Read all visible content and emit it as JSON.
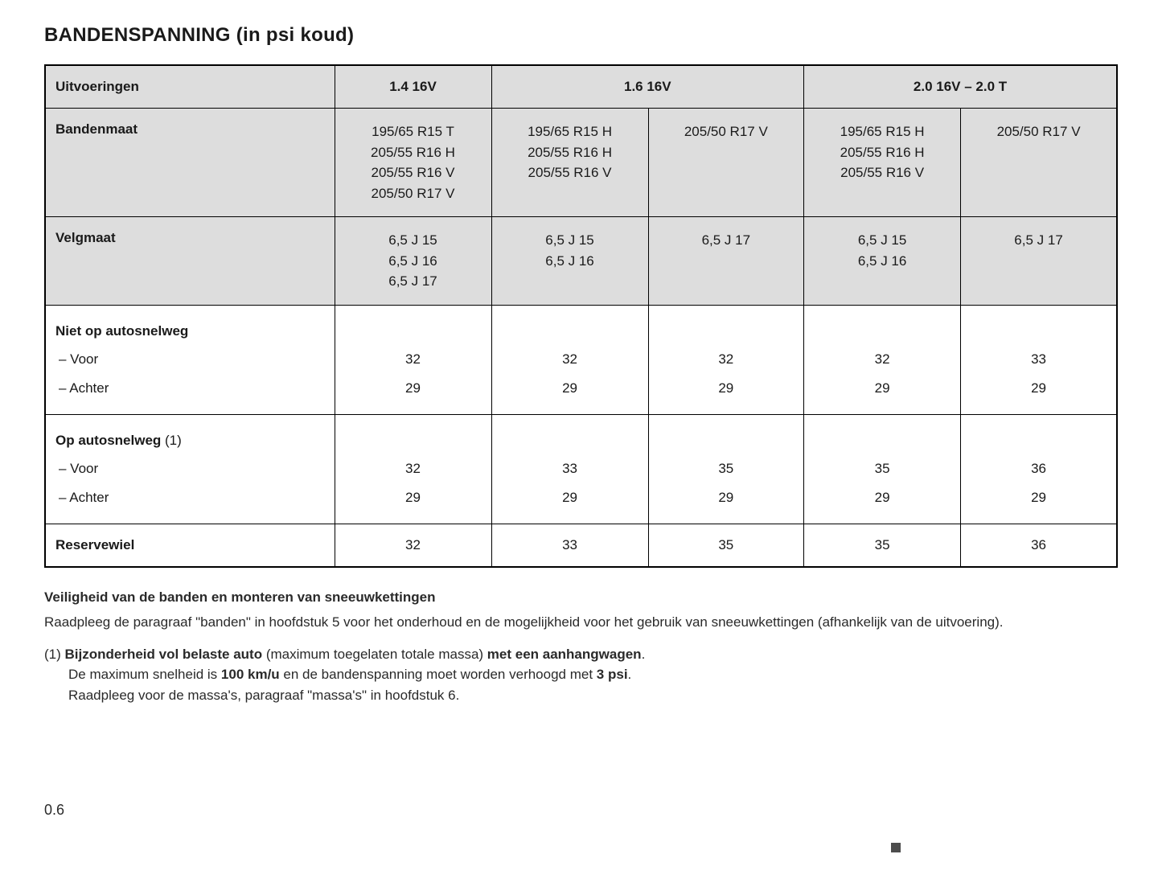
{
  "title": "BANDENSPANNING (in psi koud)",
  "headers": {
    "label": "Uitvoeringen",
    "col1": "1.4 16V",
    "col2": "1.6 16V",
    "col3": "2.0 16V – 2.0 T"
  },
  "tire": {
    "label": "Bandenmaat",
    "c1": "195/65 R15 T\n205/55 R16 H\n205/55 R16 V\n205/50 R17 V",
    "c2": "195/65 R15 H\n205/55 R16 H\n205/55 R16 V",
    "c3": "205/50 R17 V",
    "c4": "195/65 R15 H\n205/55 R16 H\n205/55 R16 V",
    "c5": "205/50 R17 V"
  },
  "rim": {
    "label": "Velgmaat",
    "c1": "6,5 J 15\n6,5 J 16\n6,5 J 17",
    "c2": "6,5 J 15\n6,5 J 16",
    "c3": "6,5 J 17",
    "c4": "6,5 J 15\n6,5 J 16",
    "c5": "6,5 J 17"
  },
  "nonhighway": {
    "title": "Niet op autosnelweg",
    "front_label": "–   Voor",
    "rear_label": "–   Achter",
    "front": [
      "32",
      "32",
      "32",
      "32",
      "33"
    ],
    "rear": [
      "29",
      "29",
      "29",
      "29",
      "29"
    ]
  },
  "highway": {
    "title": "Op autosnelweg",
    "title_suffix": " (1)",
    "front_label": "–   Voor",
    "rear_label": "–   Achter",
    "front": [
      "32",
      "33",
      "35",
      "35",
      "36"
    ],
    "rear": [
      "29",
      "29",
      "29",
      "29",
      "29"
    ]
  },
  "spare": {
    "label": "Reservewiel",
    "vals": [
      "32",
      "33",
      "35",
      "35",
      "36"
    ]
  },
  "notes": {
    "safety_title": "Veiligheid van de banden en monteren van sneeuwkettingen",
    "safety_body": "Raadpleeg de paragraaf \"banden\" in hoofdstuk 5 voor het onderhoud en de mogelijkheid voor het gebruik van sneeuwkettingen (afhankelijk van de uitvoering).",
    "fn_prefix": "(1) ",
    "fn_bold1": "Bijzonderheid vol belaste auto",
    "fn_mid1": " (maximum toegelaten totale massa) ",
    "fn_bold2": "met een aanhangwagen",
    "fn_end1": ".",
    "fn_line2a": "De maximum snelheid is ",
    "fn_line2b": "100 km/u",
    "fn_line2c": " en de bandenspanning moet worden verhoogd met ",
    "fn_line2d": "3 psi",
    "fn_line2e": ".",
    "fn_line3": "Raadpleeg voor de massa's, paragraaf \"massa's\" in hoofdstuk 6."
  },
  "page": "0.6"
}
